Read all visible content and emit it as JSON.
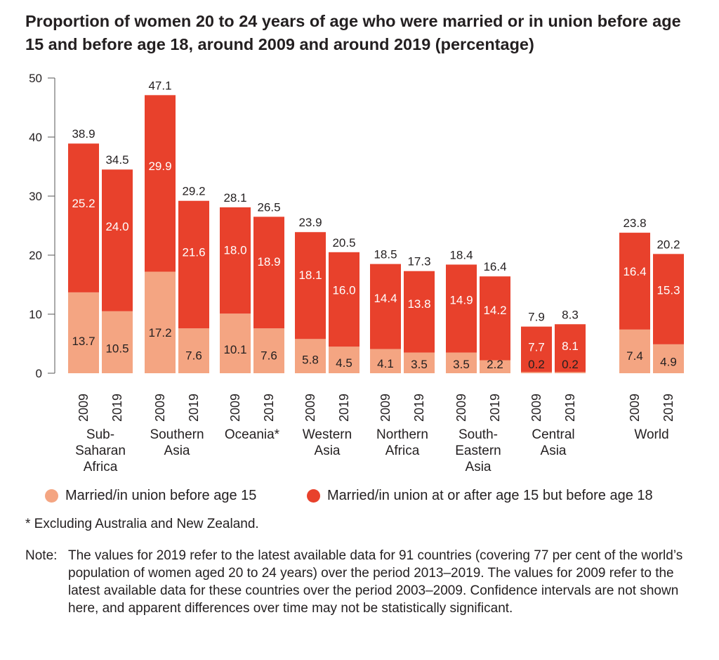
{
  "title": "Proportion of women 20 to 24 years of age who were married or in union before age 15 and before age 18, around 2009 and around 2019 (percentage)",
  "legend": {
    "before15": "Married/in union before age 15",
    "before18": "Married/in union at or after age 15 but before age 18"
  },
  "colors": {
    "before15": "#f4a582",
    "before18": "#e8412c",
    "axis": "#555555",
    "text": "#231f20"
  },
  "footnote": "* Excluding Australia and New Zealand.",
  "note": {
    "label": "Note:",
    "text": "The values for 2019 refer to the latest available data for 91 countries (covering 77 per cent of the world’s population of women aged 20 to 24 years) over the period 2013–2019. The values for 2009 refer to the latest available data for these countries over the period 2003–2009. Confidence intervals are not shown here, and apparent differences over time may not be statistically significant."
  },
  "chart_data": {
    "type": "bar",
    "stacked": true,
    "title": "Proportion of women 20 to 24 years of age who were married or in union before age 15 and before age 18, around 2009 and around 2019 (percentage)",
    "ylim": [
      0,
      50
    ],
    "yticks": [
      0,
      10,
      20,
      30,
      40,
      50
    ],
    "xlabel": "",
    "ylabel": "",
    "series_names": [
      "Married/in union before age 15",
      "Married/in union at or after age 15 but before age 18"
    ],
    "groups": [
      {
        "label": [
          "Sub-",
          "Saharan",
          "Africa"
        ],
        "bars": [
          {
            "year": "2009",
            "before15": 13.7,
            "after15": 25.2,
            "total": 38.9
          },
          {
            "year": "2019",
            "before15": 10.5,
            "after15": 24.0,
            "total": 34.5
          }
        ]
      },
      {
        "label": [
          "Southern",
          "Asia"
        ],
        "bars": [
          {
            "year": "2009",
            "before15": 17.2,
            "after15": 29.9,
            "total": 47.1
          },
          {
            "year": "2019",
            "before15": 7.6,
            "after15": 21.6,
            "total": 29.2
          }
        ]
      },
      {
        "label": [
          "Oceania*"
        ],
        "bars": [
          {
            "year": "2009",
            "before15": 10.1,
            "after15": 18.0,
            "total": 28.1
          },
          {
            "year": "2019",
            "before15": 7.6,
            "after15": 18.9,
            "total": 26.5
          }
        ]
      },
      {
        "label": [
          "Western",
          "Asia"
        ],
        "bars": [
          {
            "year": "2009",
            "before15": 5.8,
            "after15": 18.1,
            "total": 23.9
          },
          {
            "year": "2019",
            "before15": 4.5,
            "after15": 16.0,
            "total": 20.5
          }
        ]
      },
      {
        "label": [
          "Northern",
          "Africa"
        ],
        "bars": [
          {
            "year": "2009",
            "before15": 4.1,
            "after15": 14.4,
            "total": 18.5
          },
          {
            "year": "2019",
            "before15": 3.5,
            "after15": 13.8,
            "total": 17.3
          }
        ]
      },
      {
        "label": [
          "South-",
          "Eastern",
          "Asia"
        ],
        "bars": [
          {
            "year": "2009",
            "before15": 3.5,
            "after15": 14.9,
            "total": 18.4
          },
          {
            "year": "2019",
            "before15": 2.2,
            "after15": 14.2,
            "total": 16.4
          }
        ]
      },
      {
        "label": [
          "Central",
          "Asia"
        ],
        "bars": [
          {
            "year": "2009",
            "before15": 0.2,
            "after15": 7.7,
            "total": 7.9
          },
          {
            "year": "2019",
            "before15": 0.2,
            "after15": 8.1,
            "total": 8.3
          }
        ]
      },
      {
        "label": [
          "World"
        ],
        "bars": [
          {
            "year": "2009",
            "before15": 7.4,
            "after15": 16.4,
            "total": 23.8
          },
          {
            "year": "2019",
            "before15": 4.9,
            "after15": 15.3,
            "total": 20.2
          }
        ]
      }
    ]
  }
}
